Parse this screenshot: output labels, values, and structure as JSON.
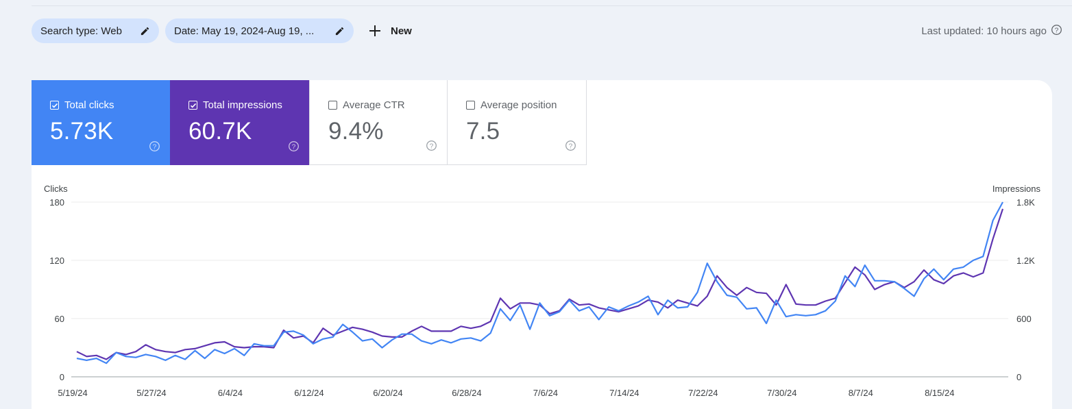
{
  "filters": {
    "search_type": "Search type: Web",
    "date": "Date: May 19, 2024-Aug 19, ...",
    "new_label": "New"
  },
  "last_updated": "Last updated: 10 hours ago",
  "metrics": [
    {
      "label": "Total clicks",
      "value": "5.73K",
      "checked": true,
      "color": "#4285f4"
    },
    {
      "label": "Total impressions",
      "value": "60.7K",
      "checked": true,
      "color": "#5e35b1"
    },
    {
      "label": "Average CTR",
      "value": "9.4%",
      "checked": false
    },
    {
      "label": "Average position",
      "value": "7.5",
      "checked": false
    }
  ],
  "icons": {
    "edit": "pencil-icon",
    "add": "plus-icon",
    "help": "question-circle-icon",
    "checkbox": "checkbox-icon"
  },
  "chart_data": {
    "type": "line",
    "ylabel": "Clicks",
    "y2label": "Impressions",
    "ylim": [
      0,
      180
    ],
    "y2lim": [
      0,
      1800
    ],
    "yticks": [
      "0",
      "60",
      "120",
      "180"
    ],
    "y2ticks": [
      "0",
      "600",
      "1.2K",
      "1.8K"
    ],
    "xticks": [
      "5/19/24",
      "5/27/24",
      "6/4/24",
      "6/12/24",
      "6/20/24",
      "6/28/24",
      "7/6/24",
      "7/14/24",
      "7/22/24",
      "7/30/24",
      "8/7/24",
      "8/15/24"
    ],
    "grid": true,
    "series": [
      {
        "name": "Clicks",
        "color": "#4285f4",
        "axis": "left",
        "values": [
          19,
          17,
          19,
          14,
          25,
          21,
          20,
          23,
          21,
          17,
          22,
          18,
          27,
          19,
          28,
          24,
          29,
          22,
          34,
          32,
          32,
          46,
          47,
          43,
          34,
          39,
          41,
          54,
          46,
          37,
          39,
          30,
          38,
          44,
          44,
          37,
          34,
          38,
          35,
          39,
          40,
          37,
          45,
          70,
          58,
          74,
          49,
          76,
          63,
          67,
          79,
          68,
          72,
          59,
          72,
          68,
          73,
          77,
          83,
          64,
          79,
          71,
          72,
          87,
          117,
          98,
          84,
          82,
          70,
          71,
          55,
          79,
          62,
          64,
          63,
          64,
          68,
          78,
          104,
          93,
          115,
          99,
          99,
          98,
          91,
          83,
          101,
          111,
          100,
          111,
          113,
          120,
          124,
          161,
          180
        ]
      },
      {
        "name": "Impressions",
        "color": "#5e35b1",
        "axis": "right",
        "values": [
          260,
          210,
          220,
          180,
          250,
          230,
          260,
          330,
          280,
          260,
          250,
          280,
          290,
          320,
          350,
          360,
          310,
          300,
          310,
          310,
          300,
          480,
          400,
          420,
          350,
          500,
          430,
          470,
          510,
          490,
          460,
          420,
          410,
          410,
          470,
          520,
          470,
          470,
          470,
          520,
          500,
          520,
          570,
          810,
          700,
          760,
          760,
          740,
          650,
          680,
          800,
          740,
          750,
          710,
          690,
          670,
          700,
          730,
          790,
          770,
          710,
          790,
          760,
          730,
          830,
          1040,
          920,
          840,
          920,
          870,
          860,
          740,
          950,
          750,
          740,
          740,
          780,
          810,
          970,
          1130,
          1050,
          900,
          950,
          980,
          920,
          980,
          1100,
          1000,
          960,
          1040,
          1070,
          1030,
          1070,
          1420,
          1730
        ]
      }
    ]
  }
}
